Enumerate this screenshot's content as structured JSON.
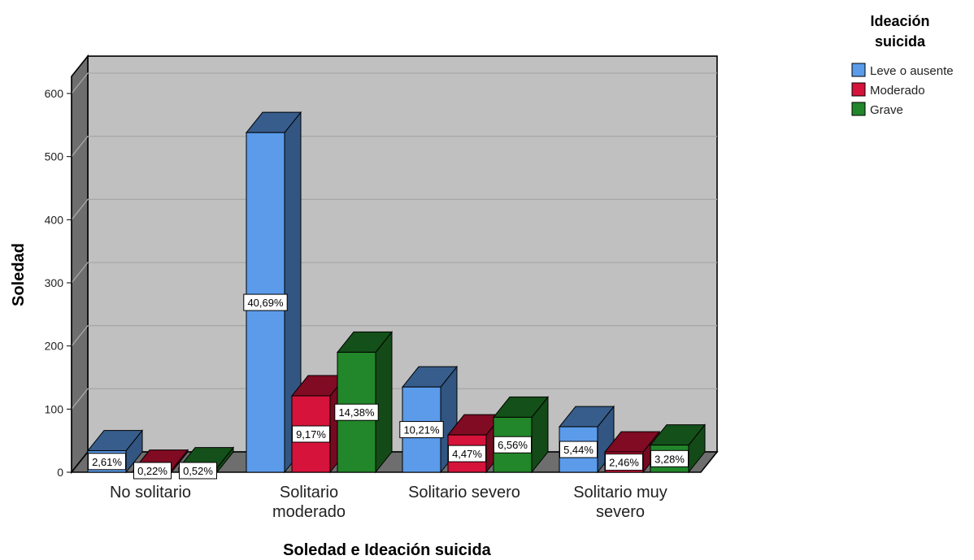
{
  "chart_data": {
    "type": "bar",
    "title": "",
    "xlabel": "Soledad e Ideación suicida",
    "ylabel": "Soledad",
    "ylim": [
      0,
      600
    ],
    "yticks": [
      0,
      100,
      200,
      300,
      400,
      500,
      600
    ],
    "grid": true,
    "legend_position": "top-right",
    "legend_title": "Ideación suicida",
    "categories": [
      "No solitario",
      "Solitario moderado",
      "Solitario severo",
      "Solitario muy severo"
    ],
    "series": [
      {
        "name": "Leve o ausente",
        "color": "#5b9bea",
        "values": [
          34,
          538,
          135,
          72
        ],
        "labels": [
          "2,61%",
          "40,69%",
          "10,21%",
          "5,44%"
        ]
      },
      {
        "name": "Moderado",
        "color": "#d6133a",
        "values": [
          3,
          121,
          59,
          32
        ],
        "labels": [
          "0,22%",
          "9,17%",
          "4,47%",
          "2,46%"
        ]
      },
      {
        "name": "Grave",
        "color": "#22862a",
        "values": [
          7,
          190,
          87,
          43
        ],
        "labels": [
          "0,52%",
          "14,38%",
          "6,56%",
          "3,28%"
        ]
      }
    ]
  }
}
